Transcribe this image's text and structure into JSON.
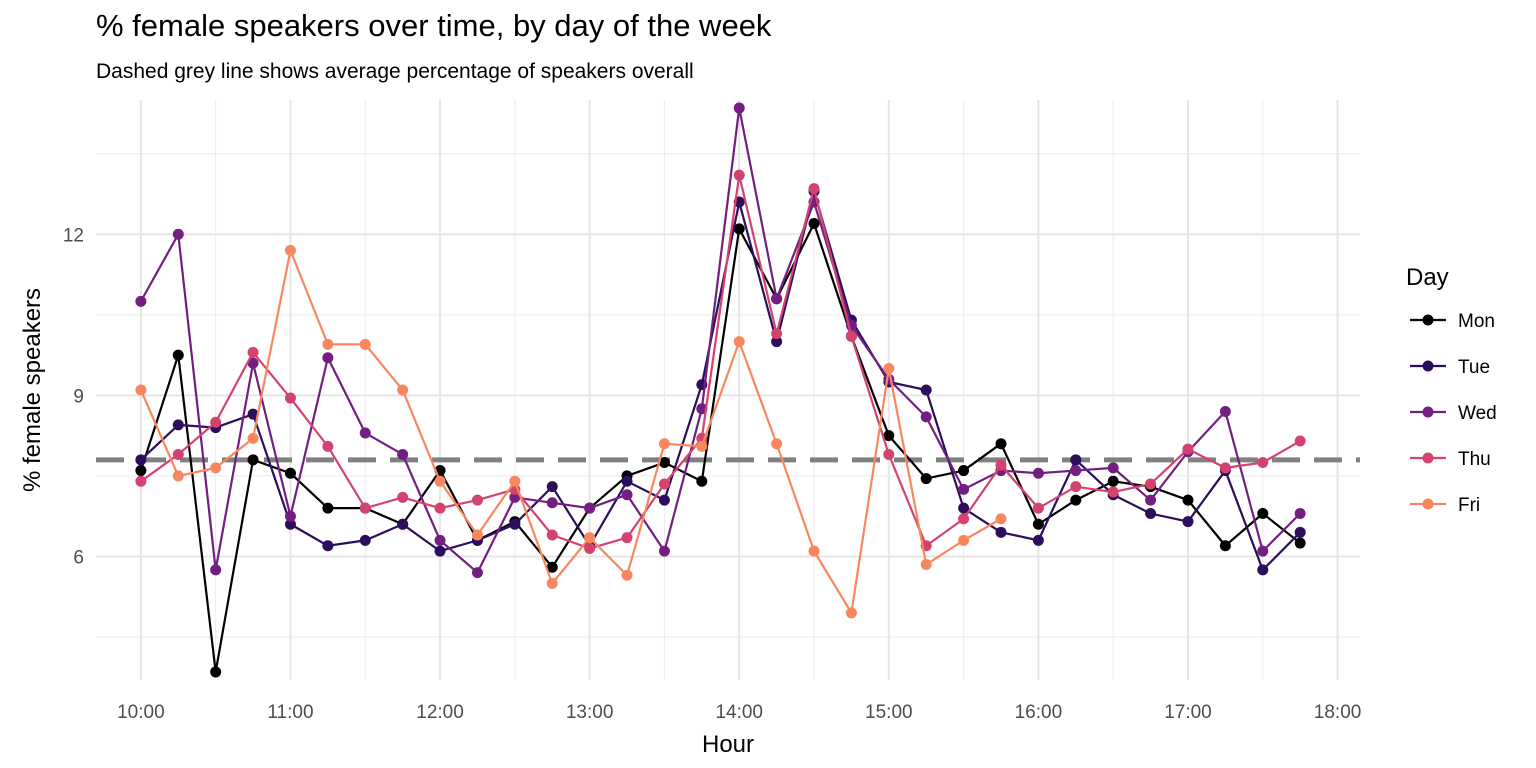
{
  "chart_data": {
    "type": "line",
    "title": "% female speakers over time, by day of the week",
    "subtitle": "Dashed grey line shows average percentage of speakers overall",
    "xlabel": "Hour",
    "ylabel": "% female speakers",
    "x_ticks": [
      "10:00",
      "11:00",
      "12:00",
      "13:00",
      "14:00",
      "15:00",
      "16:00",
      "17:00",
      "18:00"
    ],
    "x_tick_hours": [
      10,
      11,
      12,
      13,
      14,
      15,
      16,
      17,
      18
    ],
    "y_ticks": [
      6,
      9,
      12
    ],
    "xlim": [
      9.7,
      18.15
    ],
    "ylim": [
      3.7,
      14.5
    ],
    "grid": true,
    "legend_title": "Day",
    "legend_position": "right",
    "reference_line": {
      "y": 7.8,
      "style": "dashed",
      "color": "#808080"
    },
    "x": [
      10,
      10.25,
      10.5,
      10.75,
      11,
      11.25,
      11.5,
      11.75,
      12,
      12.25,
      12.5,
      12.75,
      13,
      13.25,
      13.5,
      13.75,
      14,
      14.25,
      14.5,
      14.75,
      15,
      15.25,
      15.5,
      15.75,
      16,
      16.25,
      16.5,
      16.75,
      17,
      17.25,
      17.5,
      17.75
    ],
    "series": [
      {
        "name": "Mon",
        "color": "#000000",
        "values": [
          7.6,
          9.75,
          3.85,
          7.8,
          7.55,
          6.9,
          6.9,
          6.6,
          7.6,
          6.3,
          6.65,
          5.8,
          6.9,
          7.5,
          7.75,
          7.4,
          12.1,
          10.8,
          12.2,
          10.1,
          8.25,
          7.45,
          7.6,
          8.1,
          6.6,
          7.05,
          7.4,
          7.3,
          7.05,
          6.2,
          6.8,
          6.25
        ]
      },
      {
        "name": "Tue",
        "color": "#2D0E5C",
        "values": [
          7.8,
          8.45,
          8.4,
          8.65,
          6.6,
          6.2,
          6.3,
          6.6,
          6.1,
          6.3,
          6.6,
          7.3,
          6.2,
          7.4,
          7.05,
          9.2,
          12.6,
          10.0,
          12.8,
          10.4,
          9.25,
          9.1,
          6.9,
          6.45,
          6.3,
          7.8,
          7.15,
          6.8,
          6.65,
          7.6,
          5.75,
          6.45
        ]
      },
      {
        "name": "Wed",
        "color": "#721F81",
        "values": [
          10.75,
          12.0,
          5.75,
          9.6,
          6.75,
          9.7,
          8.3,
          7.9,
          6.3,
          5.7,
          7.1,
          7.0,
          6.9,
          7.15,
          6.1,
          8.75,
          14.35,
          10.8,
          12.6,
          10.3,
          9.3,
          8.6,
          7.25,
          7.6,
          7.55,
          7.6,
          7.65,
          7.05,
          7.95,
          8.7,
          6.1,
          6.8
        ]
      },
      {
        "name": "Thu",
        "color": "#D3436E",
        "values": [
          7.4,
          7.9,
          8.5,
          9.8,
          8.95,
          8.05,
          6.9,
          7.1,
          6.9,
          7.05,
          7.25,
          6.4,
          6.15,
          6.35,
          7.35,
          8.2,
          13.1,
          10.15,
          12.85,
          10.1,
          7.9,
          6.2,
          6.7,
          7.7,
          6.9,
          7.3,
          7.2,
          7.35,
          8.0,
          7.65,
          7.75,
          8.15
        ]
      },
      {
        "name": "Fri",
        "color": "#F8875F",
        "values": [
          9.1,
          7.5,
          7.65,
          8.2,
          11.7,
          9.95,
          9.95,
          9.1,
          7.4,
          6.4,
          7.4,
          5.5,
          6.35,
          5.65,
          8.1,
          8.05,
          10.0,
          8.1,
          6.1,
          4.95,
          9.5,
          5.85,
          6.3,
          6.7,
          null,
          null,
          null,
          null,
          null,
          null,
          null,
          null
        ]
      }
    ]
  }
}
